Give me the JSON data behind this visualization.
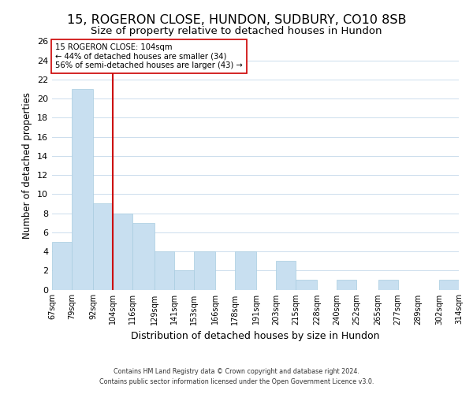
{
  "title": "15, ROGERON CLOSE, HUNDON, SUDBURY, CO10 8SB",
  "subtitle": "Size of property relative to detached houses in Hundon",
  "xlabel": "Distribution of detached houses by size in Hundon",
  "ylabel": "Number of detached properties",
  "bar_edges": [
    67,
    79,
    92,
    104,
    116,
    129,
    141,
    153,
    166,
    178,
    191,
    203,
    215,
    228,
    240,
    252,
    265,
    277,
    289,
    302,
    314
  ],
  "bar_values": [
    5,
    21,
    9,
    8,
    7,
    4,
    2,
    4,
    0,
    4,
    0,
    3,
    1,
    0,
    1,
    0,
    1,
    0,
    0,
    1
  ],
  "bar_color": "#c8dff0",
  "bar_edgecolor": "#a8cce0",
  "red_line_x": 104,
  "red_line_color": "#cc0000",
  "annotation_title": "15 ROGERON CLOSE: 104sqm",
  "annotation_line1": "← 44% of detached houses are smaller (34)",
  "annotation_line2": "56% of semi-detached houses are larger (43) →",
  "annotation_box_edgecolor": "#cc0000",
  "annotation_box_facecolor": "#ffffff",
  "ylim": [
    0,
    26
  ],
  "yticks": [
    0,
    2,
    4,
    6,
    8,
    10,
    12,
    14,
    16,
    18,
    20,
    22,
    24,
    26
  ],
  "tick_labels": [
    "67sqm",
    "79sqm",
    "92sqm",
    "104sqm",
    "116sqm",
    "129sqm",
    "141sqm",
    "153sqm",
    "166sqm",
    "178sqm",
    "191sqm",
    "203sqm",
    "215sqm",
    "228sqm",
    "240sqm",
    "252sqm",
    "265sqm",
    "277sqm",
    "289sqm",
    "302sqm",
    "314sqm"
  ],
  "footer1": "Contains HM Land Registry data © Crown copyright and database right 2024.",
  "footer2": "Contains public sector information licensed under the Open Government Licence v3.0.",
  "background_color": "#ffffff",
  "grid_color": "#ccdded",
  "title_fontsize": 11.5,
  "subtitle_fontsize": 9.5
}
